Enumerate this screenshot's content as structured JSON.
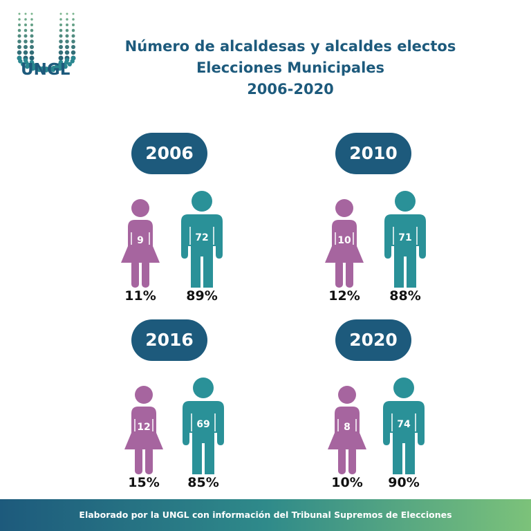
{
  "logo": {
    "text": "UNGL"
  },
  "title": {
    "line1": "Número de alcaldesas y alcaldes electos",
    "line2": "Elecciones Municipales",
    "line3": "2006-2020"
  },
  "colors": {
    "women": "#a6659f",
    "men": "#2a9198",
    "pill": "#1d5a7c"
  },
  "chart_data": {
    "type": "table",
    "title": "Número de alcaldesas y alcaldes electos — Elecciones Municipales 2006-2020",
    "columns": [
      "year",
      "women",
      "men",
      "women_pct",
      "men_pct"
    ],
    "rows": [
      {
        "year": "2006",
        "women": "9",
        "men": "72",
        "women_pct": "11%",
        "men_pct": "89%"
      },
      {
        "year": "2010",
        "women": "10",
        "men": "71",
        "women_pct": "12%",
        "men_pct": "88%"
      },
      {
        "year": "2016",
        "women": "12",
        "men": "69",
        "women_pct": "15%",
        "men_pct": "85%"
      },
      {
        "year": "2020",
        "women": "8",
        "men": "74",
        "women_pct": "10%",
        "men_pct": "90%"
      }
    ]
  },
  "footer": {
    "text": "Elaborado por la UNGL con información del Tribunal Supremos de Elecciones"
  }
}
